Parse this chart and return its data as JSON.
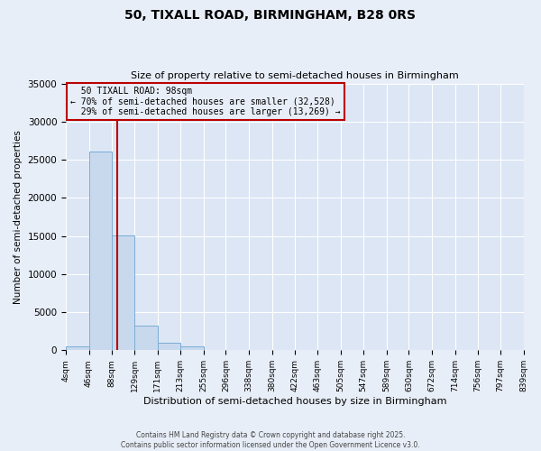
{
  "title": "50, TIXALL ROAD, BIRMINGHAM, B28 0RS",
  "subtitle": "Size of property relative to semi-detached houses in Birmingham",
  "xlabel": "Distribution of semi-detached houses by size in Birmingham",
  "ylabel": "Number of semi-detached properties",
  "bin_edges": [
    4,
    46,
    88,
    129,
    171,
    213,
    255,
    296,
    338,
    380,
    422,
    463,
    505,
    547,
    589,
    630,
    672,
    714,
    756,
    797,
    839
  ],
  "bar_heights": [
    500,
    26100,
    15100,
    3200,
    1000,
    500,
    80,
    50,
    30,
    20,
    15,
    10,
    8,
    5,
    4,
    3,
    2,
    2,
    1,
    1
  ],
  "bar_color": "#c8d9ee",
  "bar_edgecolor": "#7aadd4",
  "property_size": 98,
  "property_label": "50 TIXALL ROAD: 98sqm",
  "pct_smaller": 70,
  "count_smaller": 32528,
  "pct_larger": 29,
  "count_larger": 13269,
  "vline_color": "#bb0000",
  "ylim": [
    0,
    35000
  ],
  "yticks": [
    0,
    5000,
    10000,
    15000,
    20000,
    25000,
    30000,
    35000
  ],
  "background_color": "#e8eef8",
  "plot_bg_color": "#dce6f5",
  "grid_color": "#ffffff",
  "footer_line1": "Contains HM Land Registry data © Crown copyright and database right 2025.",
  "footer_line2": "Contains public sector information licensed under the Open Government Licence v3.0."
}
